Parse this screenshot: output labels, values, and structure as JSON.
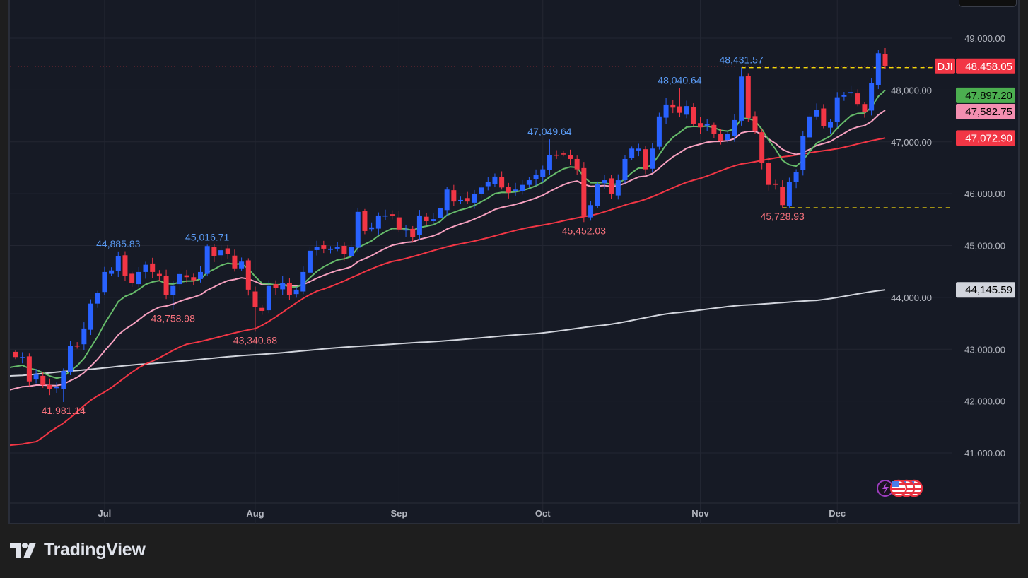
{
  "symbol": "DJI",
  "branding": {
    "name": "TradingView"
  },
  "colors": {
    "background": "#161a25",
    "up": "#2962ff",
    "down": "#f23645",
    "grid": "#232632",
    "ma_fast": "#66bb6a",
    "ma_mid": "#f7a1c0",
    "ma_slow": "#f23645",
    "ma_long": "#d1d4dc",
    "high_label": "#5b9cf6",
    "low_label": "#f7727d",
    "level_line": "#f5d90a"
  },
  "chart_data": {
    "type": "candlestick",
    "title": "",
    "ylim": [
      40200,
      49400
    ],
    "grid": true,
    "y_ticks": [
      "49,000.00",
      "48,000.00",
      "47,000.00",
      "46,000.00",
      "45,000.00",
      "44,000.00",
      "43,000.00",
      "42,000.00",
      "41,000.00"
    ],
    "y_tick_values": [
      49000,
      48000,
      47000,
      46000,
      45000,
      44000,
      43000,
      42000,
      41000
    ],
    "x_ticks": [
      {
        "label": "Jul",
        "bar": 13
      },
      {
        "label": "Aug",
        "bar": 35
      },
      {
        "label": "Sep",
        "bar": 56
      },
      {
        "label": "Oct",
        "bar": 77
      },
      {
        "label": "Nov",
        "bar": 100
      },
      {
        "label": "Dec",
        "bar": 120
      }
    ],
    "closes": [
      42850,
      42850,
      42380,
      42510,
      42310,
      42240,
      42270,
      42580,
      43060,
      43060,
      43400,
      43880,
      44080,
      44490,
      44520,
      44800,
      44420,
      44280,
      44490,
      44630,
      44490,
      44420,
      44040,
      44220,
      44450,
      44390,
      44330,
      44490,
      44990,
      44800,
      44910,
      44830,
      44560,
      44690,
      44150,
      43810,
      43740,
      44220,
      44180,
      44280,
      44040,
      44150,
      44490,
      44900,
      44970,
      44940,
      44940,
      44970,
      44830,
      44970,
      45650,
      45280,
      45350,
      45580,
      45580,
      45580,
      45310,
      45310,
      45170,
      45580,
      45470,
      45510,
      45720,
      46080,
      45850,
      45880,
      45850,
      45990,
      46120,
      46220,
      46330,
      46120,
      46020,
      46080,
      46170,
      46260,
      46360,
      46470,
      46740,
      46740,
      46770,
      46670,
      46470,
      45580,
      45780,
      46190,
      46260,
      45990,
      46260,
      46670,
      46870,
      46870,
      46470,
      46870,
      47490,
      47720,
      47660,
      47560,
      47690,
      47350,
      47280,
      47350,
      47150,
      47010,
      47150,
      47420,
      48260,
      47460,
      47210,
      46600,
      46170,
      46170,
      45780,
      46220,
      46420,
      47110,
      47490,
      47620,
      47310,
      47390,
      47860,
      47900,
      47960,
      47730,
      47580,
      48130,
      48710,
      48458.05
    ],
    "annotations": [
      {
        "text": "41,981.14",
        "bar": 7,
        "value": 41981.14,
        "kind": "low"
      },
      {
        "text": "44,885.83",
        "bar": 15,
        "value": 44885.83,
        "kind": "high"
      },
      {
        "text": "43,758.98",
        "bar": 23,
        "value": 43758.98,
        "kind": "low"
      },
      {
        "text": "45,016.71",
        "bar": 28,
        "value": 45016.71,
        "kind": "high"
      },
      {
        "text": "43,340.68",
        "bar": 35,
        "value": 43340.68,
        "kind": "low"
      },
      {
        "text": "47,049.64",
        "bar": 78,
        "value": 47049.64,
        "kind": "high"
      },
      {
        "text": "45,452.03",
        "bar": 83,
        "value": 45452.03,
        "kind": "low"
      },
      {
        "text": "48,040.64",
        "bar": 97,
        "value": 48040.64,
        "kind": "high"
      },
      {
        "text": "48,431.57",
        "bar": 106,
        "value": 48431.57,
        "kind": "high"
      },
      {
        "text": "45,728.93",
        "bar": 112,
        "value": 45728.93,
        "kind": "low"
      }
    ],
    "moving_averages": {
      "slow": [
        [
          0,
          41149
        ],
        [
          3,
          41217
        ],
        [
          6,
          41490
        ],
        [
          12,
          42103
        ],
        [
          19,
          42716
        ],
        [
          25,
          43098
        ],
        [
          35,
          43398
        ],
        [
          44,
          44120
        ],
        [
          55,
          44693
        ],
        [
          65,
          45034
        ],
        [
          76,
          45374
        ],
        [
          84,
          45579
        ],
        [
          91,
          45851
        ],
        [
          99,
          46260
        ],
        [
          106,
          46574
        ],
        [
          112,
          46710
        ],
        [
          119,
          46846
        ],
        [
          127,
          47072.9
        ]
      ],
      "long": [
        [
          0,
          42485
        ],
        [
          8,
          42580
        ],
        [
          19,
          42716
        ],
        [
          35,
          42894
        ],
        [
          50,
          43057
        ],
        [
          60,
          43139
        ],
        [
          76,
          43302
        ],
        [
          86,
          43466
        ],
        [
          96,
          43698
        ],
        [
          106,
          43848
        ],
        [
          117,
          43943
        ],
        [
          127,
          44145.59
        ]
      ]
    },
    "price_tags": [
      {
        "label": "DJI",
        "value": "48,458.05",
        "price": 48458.05,
        "bg": "#f23645",
        "fg": "#ffffff"
      },
      {
        "value": "47,897.20",
        "price": 47897.2,
        "bg": "#4caf50",
        "fg": "#000000"
      },
      {
        "value": "47,582.75",
        "price": 47582.75,
        "bg": "#f48fb1",
        "fg": "#000000"
      },
      {
        "value": "47,072.90",
        "price": 47072.9,
        "bg": "#f23645",
        "fg": "#ffffff"
      },
      {
        "value": "44,145.59",
        "price": 44145.59,
        "bg": "#d1d4dc",
        "fg": "#000000"
      }
    ],
    "last_price": 48458.05
  },
  "events": {
    "icons": [
      "lightning-icon",
      "us-flag-icon",
      "us-flag-icon",
      "us-flag-icon"
    ]
  }
}
